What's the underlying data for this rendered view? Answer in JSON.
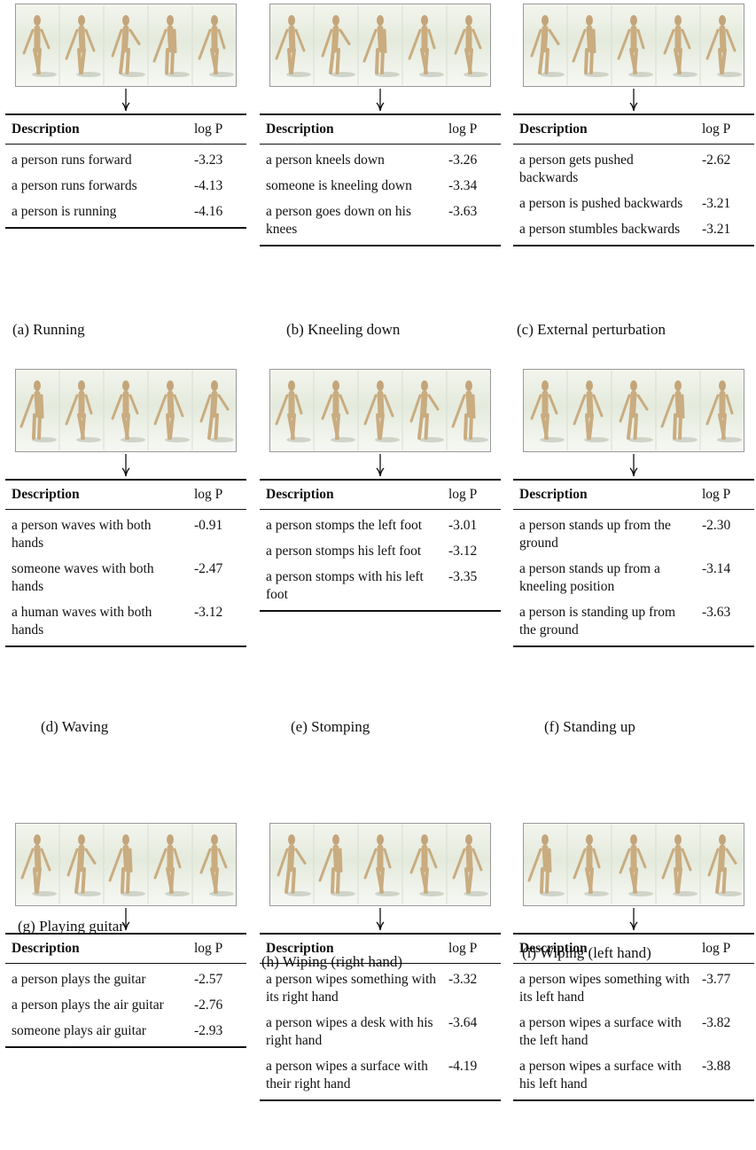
{
  "panels": [
    {
      "caption": "(a) Running",
      "header": {
        "description": "Description",
        "score": "log P"
      },
      "rows": [
        {
          "text": "a person runs forward",
          "score": "-3.23"
        },
        {
          "text": "a person runs forwards",
          "score": "-4.13"
        },
        {
          "text": "a person is running",
          "score": "-4.16"
        }
      ]
    },
    {
      "caption": "(b) Kneeling down",
      "header": {
        "description": "Description",
        "score": "log P"
      },
      "rows": [
        {
          "text": "a person kneels down",
          "score": "-3.26"
        },
        {
          "text": "someone is kneeling down",
          "score": "-3.34"
        },
        {
          "text": "a person goes down on his knees",
          "score": "-3.63"
        }
      ]
    },
    {
      "caption": "(c) External perturbation",
      "header": {
        "description": "Description",
        "score": "log P"
      },
      "rows": [
        {
          "text": "a person gets pushed backwards",
          "score": "-2.62"
        },
        {
          "text": "a person is pushed backwards",
          "score": "-3.21"
        },
        {
          "text": "a person stumbles backwards",
          "score": "-3.21"
        }
      ]
    },
    {
      "caption": "(d) Waving",
      "header": {
        "description": "Description",
        "score": "log P"
      },
      "rows": [
        {
          "text": "a person waves with both hands",
          "score": "-0.91"
        },
        {
          "text": "someone waves with both hands",
          "score": "-2.47"
        },
        {
          "text": "a human waves with both hands",
          "score": "-3.12"
        }
      ]
    },
    {
      "caption": "(e) Stomping",
      "header": {
        "description": "Description",
        "score": "log P"
      },
      "rows": [
        {
          "text": "a person stomps the left foot",
          "score": "-3.01"
        },
        {
          "text": "a person stomps his left foot",
          "score": "-3.12"
        },
        {
          "text": "a person stomps with his left foot",
          "score": "-3.35"
        }
      ]
    },
    {
      "caption": "(f) Standing up",
      "header": {
        "description": "Description",
        "score": "log P"
      },
      "rows": [
        {
          "text": "a person stands up from the ground",
          "score": "-2.30"
        },
        {
          "text": "a person stands up from a kneeling po­sition",
          "score": "-3.14"
        },
        {
          "text": "a person is standing up from the ground",
          "score": "-3.63"
        }
      ]
    },
    {
      "caption": "(g) Playing guitar",
      "header": {
        "description": "Description",
        "score": "log P"
      },
      "rows": [
        {
          "text": "a person plays the guitar",
          "score": "-2.57"
        },
        {
          "text": "a person plays the air guitar",
          "score": "-2.76"
        },
        {
          "text": "someone plays air guitar",
          "score": "-2.93"
        }
      ]
    },
    {
      "caption": "(h) Wiping (right hand)",
      "header": {
        "description": "Description",
        "score": "log P"
      },
      "rows": [
        {
          "text": "a person wipes something with its right hand",
          "score": "-3.32"
        },
        {
          "text": "a person wipes a desk with his right hand",
          "score": "-3.64"
        },
        {
          "text": "a person wipes a surface with their right hand",
          "score": "-4.19"
        }
      ]
    },
    {
      "caption": "(i) Wiping (left hand)",
      "header": {
        "description": "Description",
        "score": "log P"
      },
      "rows": [
        {
          "text": "a person wipes something with its left hand",
          "score": "-3.77"
        },
        {
          "text": "a person wipes a surface with the left hand",
          "score": "-3.82"
        },
        {
          "text": "a person wipes a surface with his left hand",
          "score": "-3.88"
        }
      ]
    }
  ]
}
